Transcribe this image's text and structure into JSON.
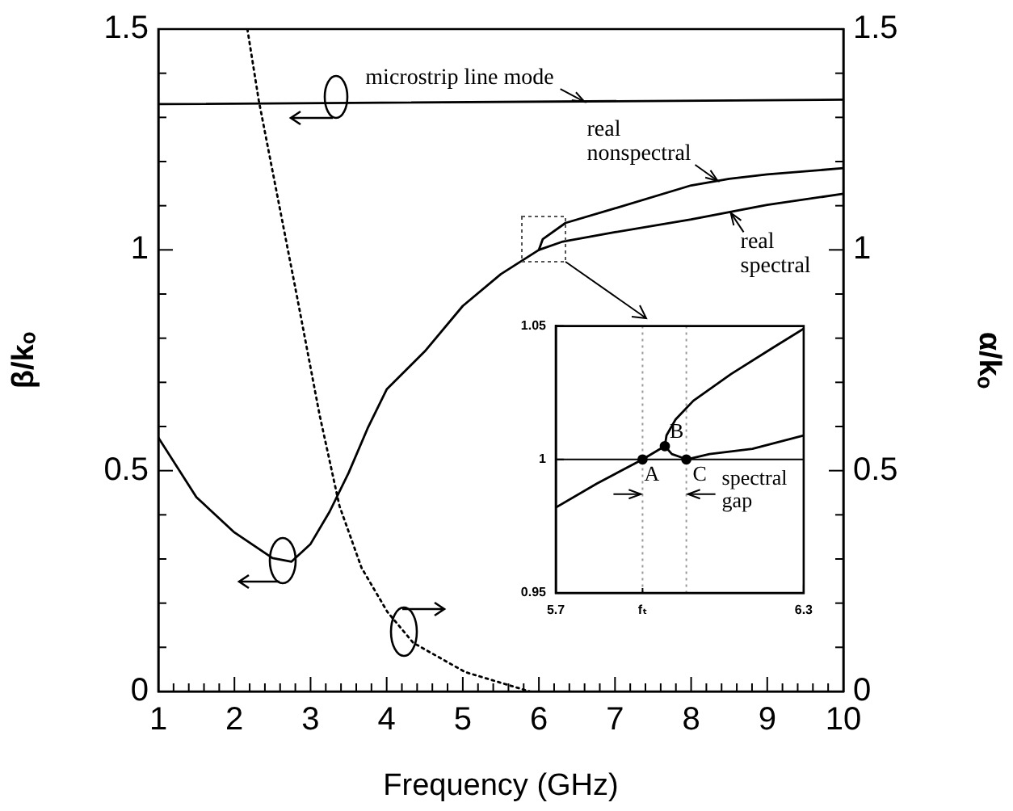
{
  "chart_data": [
    {
      "type": "line",
      "xlabel": "Frequency (GHz)",
      "ylabel": "β/kₒ",
      "y2label": "α/kₒ",
      "marker": "none",
      "line_style": "solid",
      "xlim": [
        1,
        10
      ],
      "xticks": [
        1,
        {
          "value": 1.2,
          "label": null
        },
        {
          "value": 1.4,
          "label": null
        },
        {
          "value": 1.6,
          "label": null
        },
        {
          "value": 1.8,
          "label": null
        },
        2,
        {
          "value": 2.2,
          "label": null
        },
        {
          "value": 2.4,
          "label": null
        },
        {
          "value": 2.6,
          "label": null
        },
        {
          "value": 2.8,
          "label": null
        },
        3,
        {
          "value": 3.2,
          "label": null
        },
        {
          "value": 3.4,
          "label": null
        },
        {
          "value": 3.6,
          "label": null
        },
        {
          "value": 3.8,
          "label": null
        },
        4,
        {
          "value": 4.2,
          "label": null
        },
        {
          "value": 4.4,
          "label": null
        },
        {
          "value": 4.6,
          "label": null
        },
        {
          "value": 4.8,
          "label": null
        },
        5,
        {
          "value": 5.2,
          "label": null
        },
        {
          "value": 5.4,
          "label": null
        },
        {
          "value": 5.6,
          "label": null
        },
        {
          "value": 5.8,
          "label": null
        },
        6,
        {
          "value": 6.2,
          "label": null
        },
        {
          "value": 6.4,
          "label": null
        },
        {
          "value": 6.6,
          "label": null
        },
        {
          "value": 6.8,
          "label": null
        },
        7,
        {
          "value": 7.2,
          "label": null
        },
        {
          "value": 7.4,
          "label": null
        },
        {
          "value": 7.6,
          "label": null
        },
        {
          "value": 7.8,
          "label": null
        },
        8,
        {
          "value": 8.2,
          "label": null
        },
        {
          "value": 8.4,
          "label": null
        },
        {
          "value": 8.6,
          "label": null
        },
        {
          "value": 8.8,
          "label": null
        },
        9,
        {
          "value": 9.2,
          "label": null
        },
        {
          "value": 9.4,
          "label": null
        },
        {
          "value": 9.6,
          "label": null
        },
        {
          "value": 9.8,
          "label": null
        },
        10
      ],
      "ylim": [
        0,
        1.5
      ],
      "yticks": [
        0,
        {
          "value": 0.1,
          "label": null
        },
        {
          "value": 0.2,
          "label": null
        },
        {
          "value": 0.3,
          "label": null
        },
        {
          "value": 0.4,
          "label": null
        },
        0.5,
        {
          "value": 0.6,
          "label": null
        },
        {
          "value": 0.7,
          "label": null
        },
        {
          "value": 0.8,
          "label": null
        },
        {
          "value": 0.9,
          "label": null
        },
        1,
        {
          "value": 1.1,
          "label": null
        },
        {
          "value": 1.2,
          "label": null
        },
        {
          "value": 1.3,
          "label": null
        },
        {
          "value": 1.4,
          "label": null
        },
        1.5
      ],
      "y2lim": [
        0,
        1.5
      ],
      "y2ticks": [
        0,
        {
          "value": 0.1,
          "label": null
        },
        {
          "value": 0.2,
          "label": null
        },
        {
          "value": 0.3,
          "label": null
        },
        {
          "value": 0.4,
          "label": null
        },
        0.5,
        {
          "value": 0.6,
          "label": null
        },
        {
          "value": 0.7,
          "label": null
        },
        {
          "value": 0.8,
          "label": null
        },
        {
          "value": 0.9,
          "label": null
        },
        1,
        {
          "value": 1.1,
          "label": null
        },
        {
          "value": 1.2,
          "label": null
        },
        {
          "value": 1.3,
          "label": null
        },
        {
          "value": 1.4,
          "label": null
        },
        1.5
      ],
      "series": [
        {
          "color": "#000000",
          "x": [
            1,
            10
          ],
          "values": [
            1.33,
            1.34
          ]
        },
        {
          "color": "#000000",
          "x": [
            1,
            1.5,
            2,
            2.5,
            2.75,
            3,
            3.25,
            3.5,
            3.75,
            4,
            4.5,
            5,
            5.5,
            6,
            6.05,
            6.35,
            7,
            8,
            8.5,
            9,
            10
          ],
          "values": [
            0.575,
            0.44,
            0.36,
            0.302,
            0.294,
            0.334,
            0.407,
            0.495,
            0.596,
            0.684,
            0.77,
            0.873,
            0.945,
            1.0,
            1.024,
            1.061,
            1.094,
            1.146,
            1.161,
            1.171,
            1.185
          ]
        },
        {
          "color": "#000000",
          "x": [
            6.0,
            6.3,
            7,
            8,
            9,
            10
          ],
          "values": [
            1.0,
            1.018,
            1.04,
            1.069,
            1.102,
            1.127
          ]
        },
        {
          "color": "#000000",
          "axis": "y2",
          "line_style": "dotted",
          "x": [
            2.17,
            2.32,
            2.83,
            3.12,
            3.38,
            3.67,
            4.01,
            4.35,
            5.03,
            5.88
          ],
          "values": [
            1.5,
            1.338,
            0.887,
            0.625,
            0.42,
            0.28,
            0.18,
            0.11,
            0.044,
            0.0
          ]
        }
      ],
      "annotations": [
        {
          "text": "microstrip line mode",
          "x": 6.6,
          "y": 1.335
        },
        {
          "text": "real nonspectral",
          "x": 8.35,
          "y": 1.156
        },
        {
          "text": "real spectral",
          "x": 8.52,
          "y": 1.084
        }
      ]
    },
    {
      "type": "line",
      "marker": "none",
      "line_style": "solid",
      "xlim": [
        5.7,
        6.3
      ],
      "xticks": [
        5.7,
        {
          "value": 5.91,
          "label": "fₜ"
        },
        6.3
      ],
      "ylim": [
        0.95,
        1.05
      ],
      "yticks": [
        0.95,
        1,
        1.05
      ],
      "series": [
        {
          "color": "#000000",
          "x": [
            5.7,
            5.8,
            5.91,
            5.964
          ],
          "values": [
            0.982,
            0.991,
            1.0,
            1.005
          ]
        },
        {
          "color": "#000000",
          "x": [
            5.964,
            5.968,
            5.99,
            6.033,
            6.124,
            6.227,
            6.3
          ],
          "values": [
            1.005,
            1.009,
            1.015,
            1.022,
            1.032,
            1.042,
            1.049
          ]
        },
        {
          "color": "#000000",
          "x": [
            5.964,
            5.981,
            6.0,
            6.016,
            6.072,
            6.176,
            6.3
          ],
          "values": [
            1.005,
            1.002,
            1.001,
            1.0,
            1.002,
            1.004,
            1.009
          ]
        },
        {
          "type": "scatter",
          "marker": "circle",
          "color": "#000000",
          "x": [
            5.91,
            5.964,
            6.016
          ],
          "values": [
            1.0,
            1.005,
            1.0
          ]
        }
      ],
      "ref_lines": [
        {
          "axis": "y",
          "value": 1,
          "color": "#000000",
          "line_style": "solid"
        },
        {
          "axis": "x",
          "value": 5.91,
          "color": "#999999",
          "line_style": "dotted"
        },
        {
          "axis": "x",
          "value": 6.016,
          "color": "#999999",
          "line_style": "dotted"
        }
      ],
      "annotations": [
        {
          "text": "A",
          "x": 5.91,
          "y": 1.0
        },
        {
          "text": "B",
          "x": 5.964,
          "y": 1.005
        },
        {
          "text": "C",
          "x": 6.016,
          "y": 1.0
        },
        "spectral gap"
      ]
    }
  ]
}
